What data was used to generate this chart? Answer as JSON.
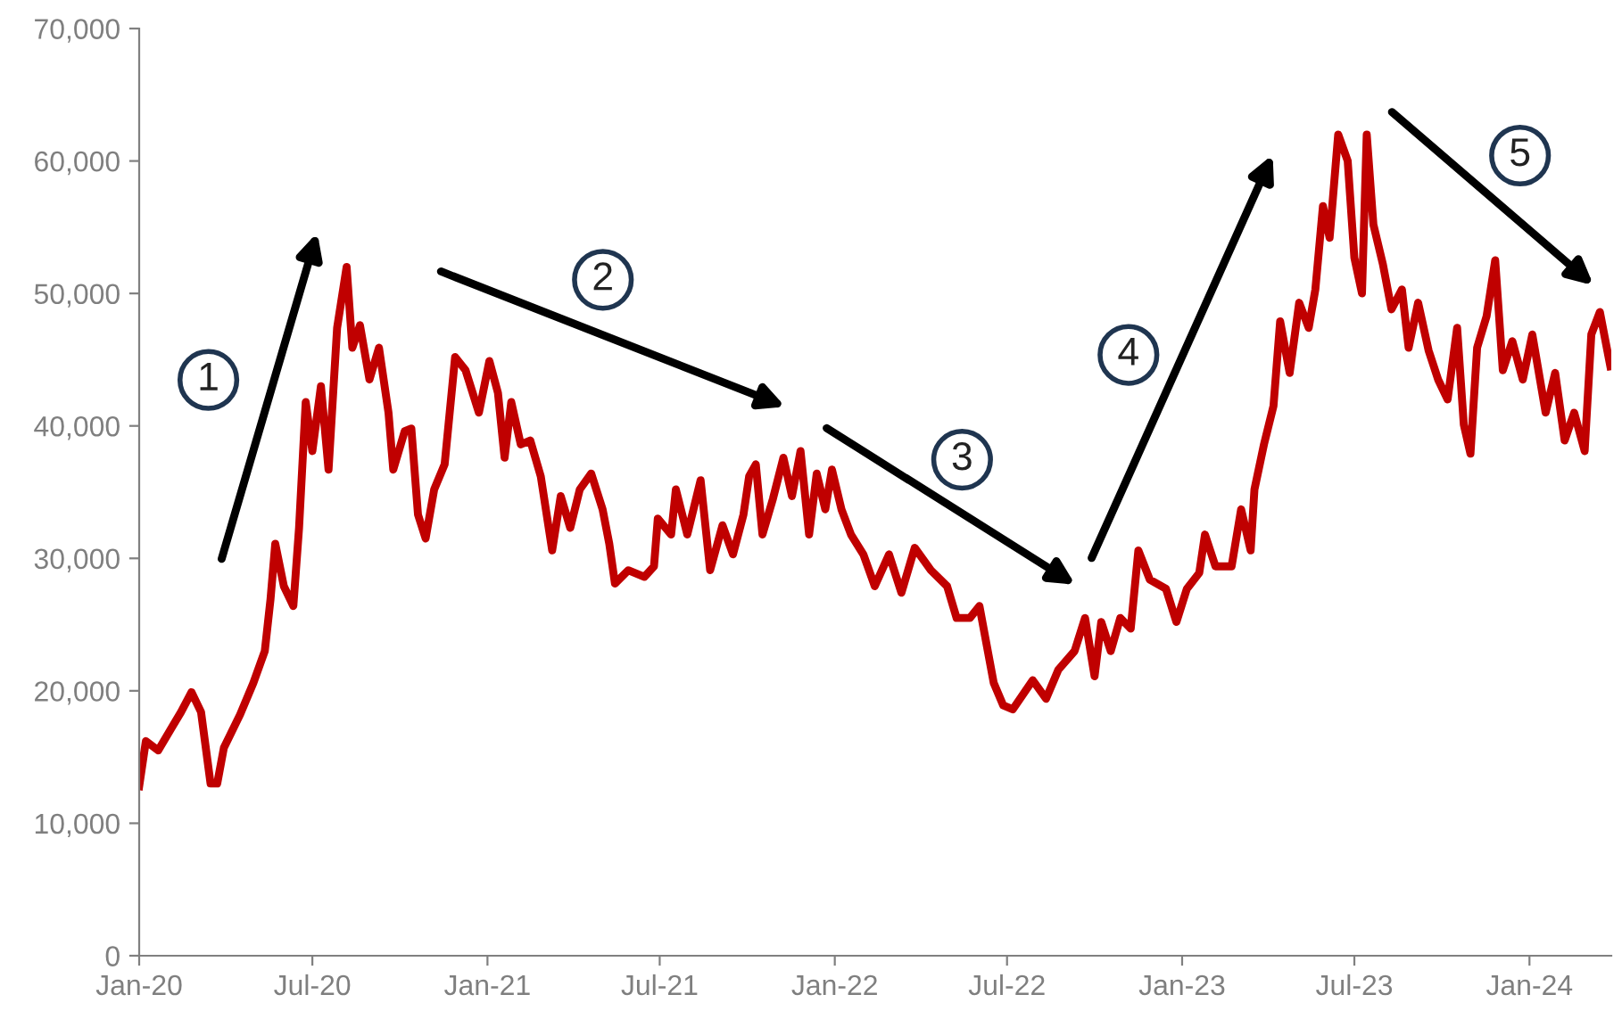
{
  "chart_data": {
    "type": "line",
    "x": [
      "2020-01-01",
      "2020-01-08",
      "2020-01-21",
      "2020-02-04",
      "2020-02-14",
      "2020-02-25",
      "2020-03-06",
      "2020-03-16",
      "2020-03-23",
      "2020-03-30",
      "2020-04-16",
      "2020-04-30",
      "2020-05-12",
      "2020-05-18",
      "2020-05-23",
      "2020-06-01",
      "2020-06-11",
      "2020-06-17",
      "2020-06-24",
      "2020-07-01",
      "2020-07-10",
      "2020-07-18",
      "2020-07-27",
      "2020-08-06",
      "2020-08-12",
      "2020-08-20",
      "2020-08-30",
      "2020-09-09",
      "2020-09-19",
      "2020-09-24",
      "2020-10-06",
      "2020-10-13",
      "2020-10-20",
      "2020-10-28",
      "2020-11-06",
      "2020-11-17",
      "2020-11-28",
      "2020-12-09",
      "2020-12-23",
      "2021-01-03",
      "2021-01-12",
      "2021-01-19",
      "2021-01-26",
      "2021-02-05",
      "2021-02-15",
      "2021-02-26",
      "2021-03-10",
      "2021-03-19",
      "2021-03-29",
      "2021-04-08",
      "2021-04-20",
      "2021-05-02",
      "2021-05-09",
      "2021-05-15",
      "2021-05-29",
      "2021-06-15",
      "2021-06-25",
      "2021-06-29",
      "2021-07-13",
      "2021-07-18",
      "2021-07-30",
      "2021-08-13",
      "2021-08-23",
      "2021-09-05",
      "2021-09-16",
      "2021-09-27",
      "2021-10-03",
      "2021-10-10",
      "2021-10-17",
      "2021-10-28",
      "2021-11-08",
      "2021-11-17",
      "2021-11-26",
      "2021-12-05",
      "2021-12-13",
      "2021-12-22",
      "2021-12-29",
      "2022-01-08",
      "2022-01-18",
      "2022-01-31",
      "2022-02-12",
      "2022-02-27",
      "2022-03-12",
      "2022-03-26",
      "2022-04-12",
      "2022-04-29",
      "2022-05-09",
      "2022-05-23",
      "2022-06-02",
      "2022-06-17",
      "2022-06-27",
      "2022-07-07",
      "2022-07-28",
      "2022-08-11",
      "2022-08-24",
      "2022-09-10",
      "2022-09-21",
      "2022-10-01",
      "2022-10-08",
      "2022-10-18",
      "2022-10-28",
      "2022-11-08",
      "2022-11-16",
      "2022-11-28",
      "2022-12-15",
      "2022-12-26",
      "2023-01-06",
      "2023-01-19",
      "2023-01-25",
      "2023-02-05",
      "2023-02-22",
      "2023-03-04",
      "2023-03-14",
      "2023-03-18",
      "2023-03-28",
      "2023-04-07",
      "2023-04-14",
      "2023-04-24",
      "2023-05-04",
      "2023-05-14",
      "2023-05-21",
      "2023-05-29",
      "2023-06-05",
      "2023-06-14",
      "2023-06-24",
      "2023-07-01",
      "2023-07-09",
      "2023-07-14",
      "2023-07-21",
      "2023-07-31",
      "2023-08-09",
      "2023-08-20",
      "2023-08-27",
      "2023-09-06",
      "2023-09-17",
      "2023-09-27",
      "2023-10-07",
      "2023-10-17",
      "2023-10-24",
      "2023-10-31",
      "2023-11-07",
      "2023-11-17",
      "2023-11-26",
      "2023-12-04",
      "2023-12-14",
      "2023-12-25",
      "2024-01-04",
      "2024-01-18",
      "2024-01-28",
      "2024-02-07",
      "2024-02-17",
      "2024-02-28",
      "2024-03-06",
      "2024-03-15",
      "2024-03-26"
    ],
    "series": [
      {
        "color": "#c00000",
        "values": [
          12800,
          16200,
          15500,
          17200,
          18400,
          19900,
          18400,
          13000,
          13000,
          15700,
          18200,
          20600,
          23000,
          26900,
          31100,
          27900,
          26400,
          32300,
          41800,
          38100,
          43000,
          36700,
          47400,
          52000,
          45900,
          47600,
          43500,
          45900,
          41000,
          36700,
          39600,
          39800,
          33300,
          31500,
          35200,
          37100,
          45200,
          44200,
          41000,
          44900,
          42500,
          37600,
          41800,
          38600,
          38900,
          36200,
          30600,
          34700,
          32300,
          35200,
          36400,
          33700,
          31100,
          28100,
          29100,
          28600,
          29400,
          33000,
          31800,
          35200,
          31800,
          35900,
          29100,
          32500,
          30300,
          33300,
          36200,
          37100,
          31800,
          34500,
          37600,
          34700,
          38100,
          31800,
          36400,
          33700,
          36700,
          33700,
          31800,
          30300,
          27900,
          30300,
          27400,
          30800,
          29100,
          27900,
          25500,
          25500,
          26400,
          20600,
          18900,
          18600,
          20800,
          19400,
          21600,
          23000,
          25500,
          21100,
          25200,
          23000,
          25500,
          24700,
          30600,
          28400,
          27700,
          25200,
          27700,
          28900,
          31800,
          29400,
          29400,
          33700,
          30600,
          35200,
          38600,
          41500,
          47900,
          44000,
          49300,
          47400,
          50300,
          56600,
          54200,
          62000,
          60000,
          52700,
          50000,
          62000,
          55200,
          52200,
          48800,
          50300,
          45900,
          49300,
          45700,
          43500,
          42000,
          47400,
          40100,
          37900,
          45900,
          48300,
          52500,
          44200,
          46400,
          43500,
          46900,
          41000,
          44000,
          38900,
          41000,
          38100,
          46900,
          48600,
          44500
        ]
      }
    ],
    "xlim": [
      "2020-01-01",
      "2024-03-27"
    ],
    "xticks": [
      {
        "value": "2020-01-01",
        "label": "Jan-20"
      },
      {
        "value": "2020-07-01",
        "label": "Jul-20"
      },
      {
        "value": "2021-01-01",
        "label": "Jan-21"
      },
      {
        "value": "2021-07-01",
        "label": "Jul-21"
      },
      {
        "value": "2022-01-01",
        "label": "Jan-22"
      },
      {
        "value": "2022-07-01",
        "label": "Jul-22"
      },
      {
        "value": "2023-01-01",
        "label": "Jan-23"
      },
      {
        "value": "2023-07-01",
        "label": "Jul-23"
      },
      {
        "value": "2024-01-01",
        "label": "Jan-24"
      }
    ],
    "ylim": [
      0,
      70000
    ],
    "yticks": [
      {
        "value": 0,
        "label": "0"
      },
      {
        "value": 10000,
        "label": "10,000"
      },
      {
        "value": 20000,
        "label": "20,000"
      },
      {
        "value": 30000,
        "label": "30,000"
      },
      {
        "value": 40000,
        "label": "40,000"
      },
      {
        "value": 50000,
        "label": "50,000"
      },
      {
        "value": 60000,
        "label": "60,000"
      },
      {
        "value": 70000,
        "label": "70,000"
      }
    ],
    "annotations": [
      "1",
      "2",
      "3",
      "4",
      "5"
    ],
    "grid": false,
    "legend": false
  }
}
